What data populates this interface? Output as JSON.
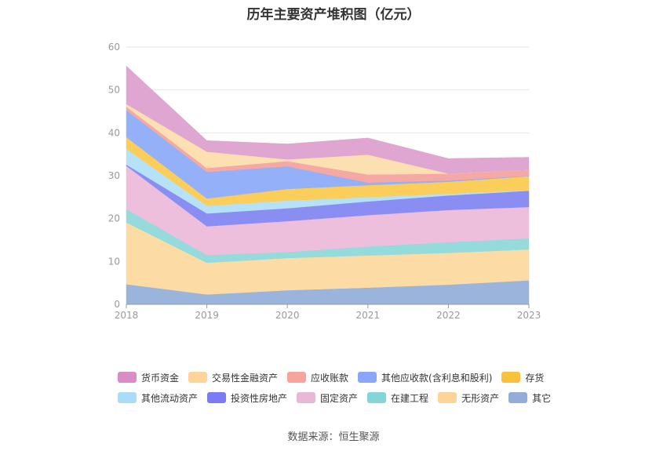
{
  "chart_title": "历年主要资产堆积图（亿元）",
  "source_label": "数据来源：恒生聚源",
  "chart_data": {
    "type": "area",
    "stacked": true,
    "title": "历年主要资产堆积图（亿元）",
    "x": [
      "2018",
      "2019",
      "2020",
      "2021",
      "2022",
      "2023"
    ],
    "ylim": [
      0,
      60
    ],
    "yticks": [
      0,
      10,
      20,
      30,
      40,
      50,
      60
    ],
    "grid": true,
    "legend_position": "bottom",
    "series": [
      {
        "name": "其它",
        "color": "#9bb4dc",
        "values": [
          4.7,
          2.3,
          3.3,
          3.9,
          4.6,
          5.6
        ]
      },
      {
        "name": "无形资产",
        "color": "#fcdca4",
        "values": [
          14.4,
          7.4,
          7.5,
          7.5,
          7.4,
          7.2
        ]
      },
      {
        "name": "在建工程",
        "color": "#95dbdb",
        "values": [
          3.1,
          1.8,
          1.4,
          2.1,
          2.5,
          2.6
        ]
      },
      {
        "name": "固定资产",
        "color": "#eebfdc",
        "values": [
          10.1,
          6.7,
          7.2,
          7.3,
          7.5,
          7.3
        ]
      },
      {
        "name": "投资性房地产",
        "color": "#8a8ef2",
        "values": [
          0.3,
          3.0,
          3.0,
          3.2,
          3.4,
          3.8
        ]
      },
      {
        "name": "其他流动资产",
        "color": "#b6e2f8",
        "values": [
          3.7,
          1.8,
          1.8,
          1.0,
          0.4,
          0.1
        ]
      },
      {
        "name": "存货",
        "color": "#fbcd5a",
        "values": [
          2.7,
          1.7,
          2.7,
          2.8,
          2.8,
          3.3
        ]
      },
      {
        "name": "其他应收款(含利息和股利)",
        "color": "#94b0f8",
        "values": [
          6.3,
          6.2,
          5.3,
          0.6,
          0.3,
          0.1
        ]
      },
      {
        "name": "应收账款",
        "color": "#f6a9a4",
        "values": [
          0.8,
          0.9,
          1.2,
          1.9,
          1.6,
          1.4
        ]
      },
      {
        "name": "交易性金融资产",
        "color": "#fde0b1",
        "values": [
          0.6,
          3.8,
          0.4,
          4.6,
          0.0,
          0.0
        ]
      },
      {
        "name": "货币资金",
        "color": "#e0a6d2",
        "values": [
          8.9,
          2.6,
          3.6,
          3.9,
          3.5,
          2.9
        ]
      }
    ]
  },
  "legend_rows": [
    [
      {
        "label": "货币资金",
        "color": "#d98cc5"
      },
      {
        "label": "交易性金融资产",
        "color": "#fcd59a"
      },
      {
        "label": "应收账款",
        "color": "#f6a59c"
      },
      {
        "label": "其他应收款(含利息和股利)",
        "color": "#8aa6f7"
      },
      {
        "label": "存货",
        "color": "#f9c23c"
      }
    ],
    [
      {
        "label": "其他流动资产",
        "color": "#a8dcf8"
      },
      {
        "label": "投资性房地产",
        "color": "#7b7cf3"
      },
      {
        "label": "固定资产",
        "color": "#eab8d7"
      },
      {
        "label": "在建工程",
        "color": "#86d5d6"
      },
      {
        "label": "无形资产",
        "color": "#fcd497"
      },
      {
        "label": "其它",
        "color": "#93add8"
      }
    ]
  ]
}
